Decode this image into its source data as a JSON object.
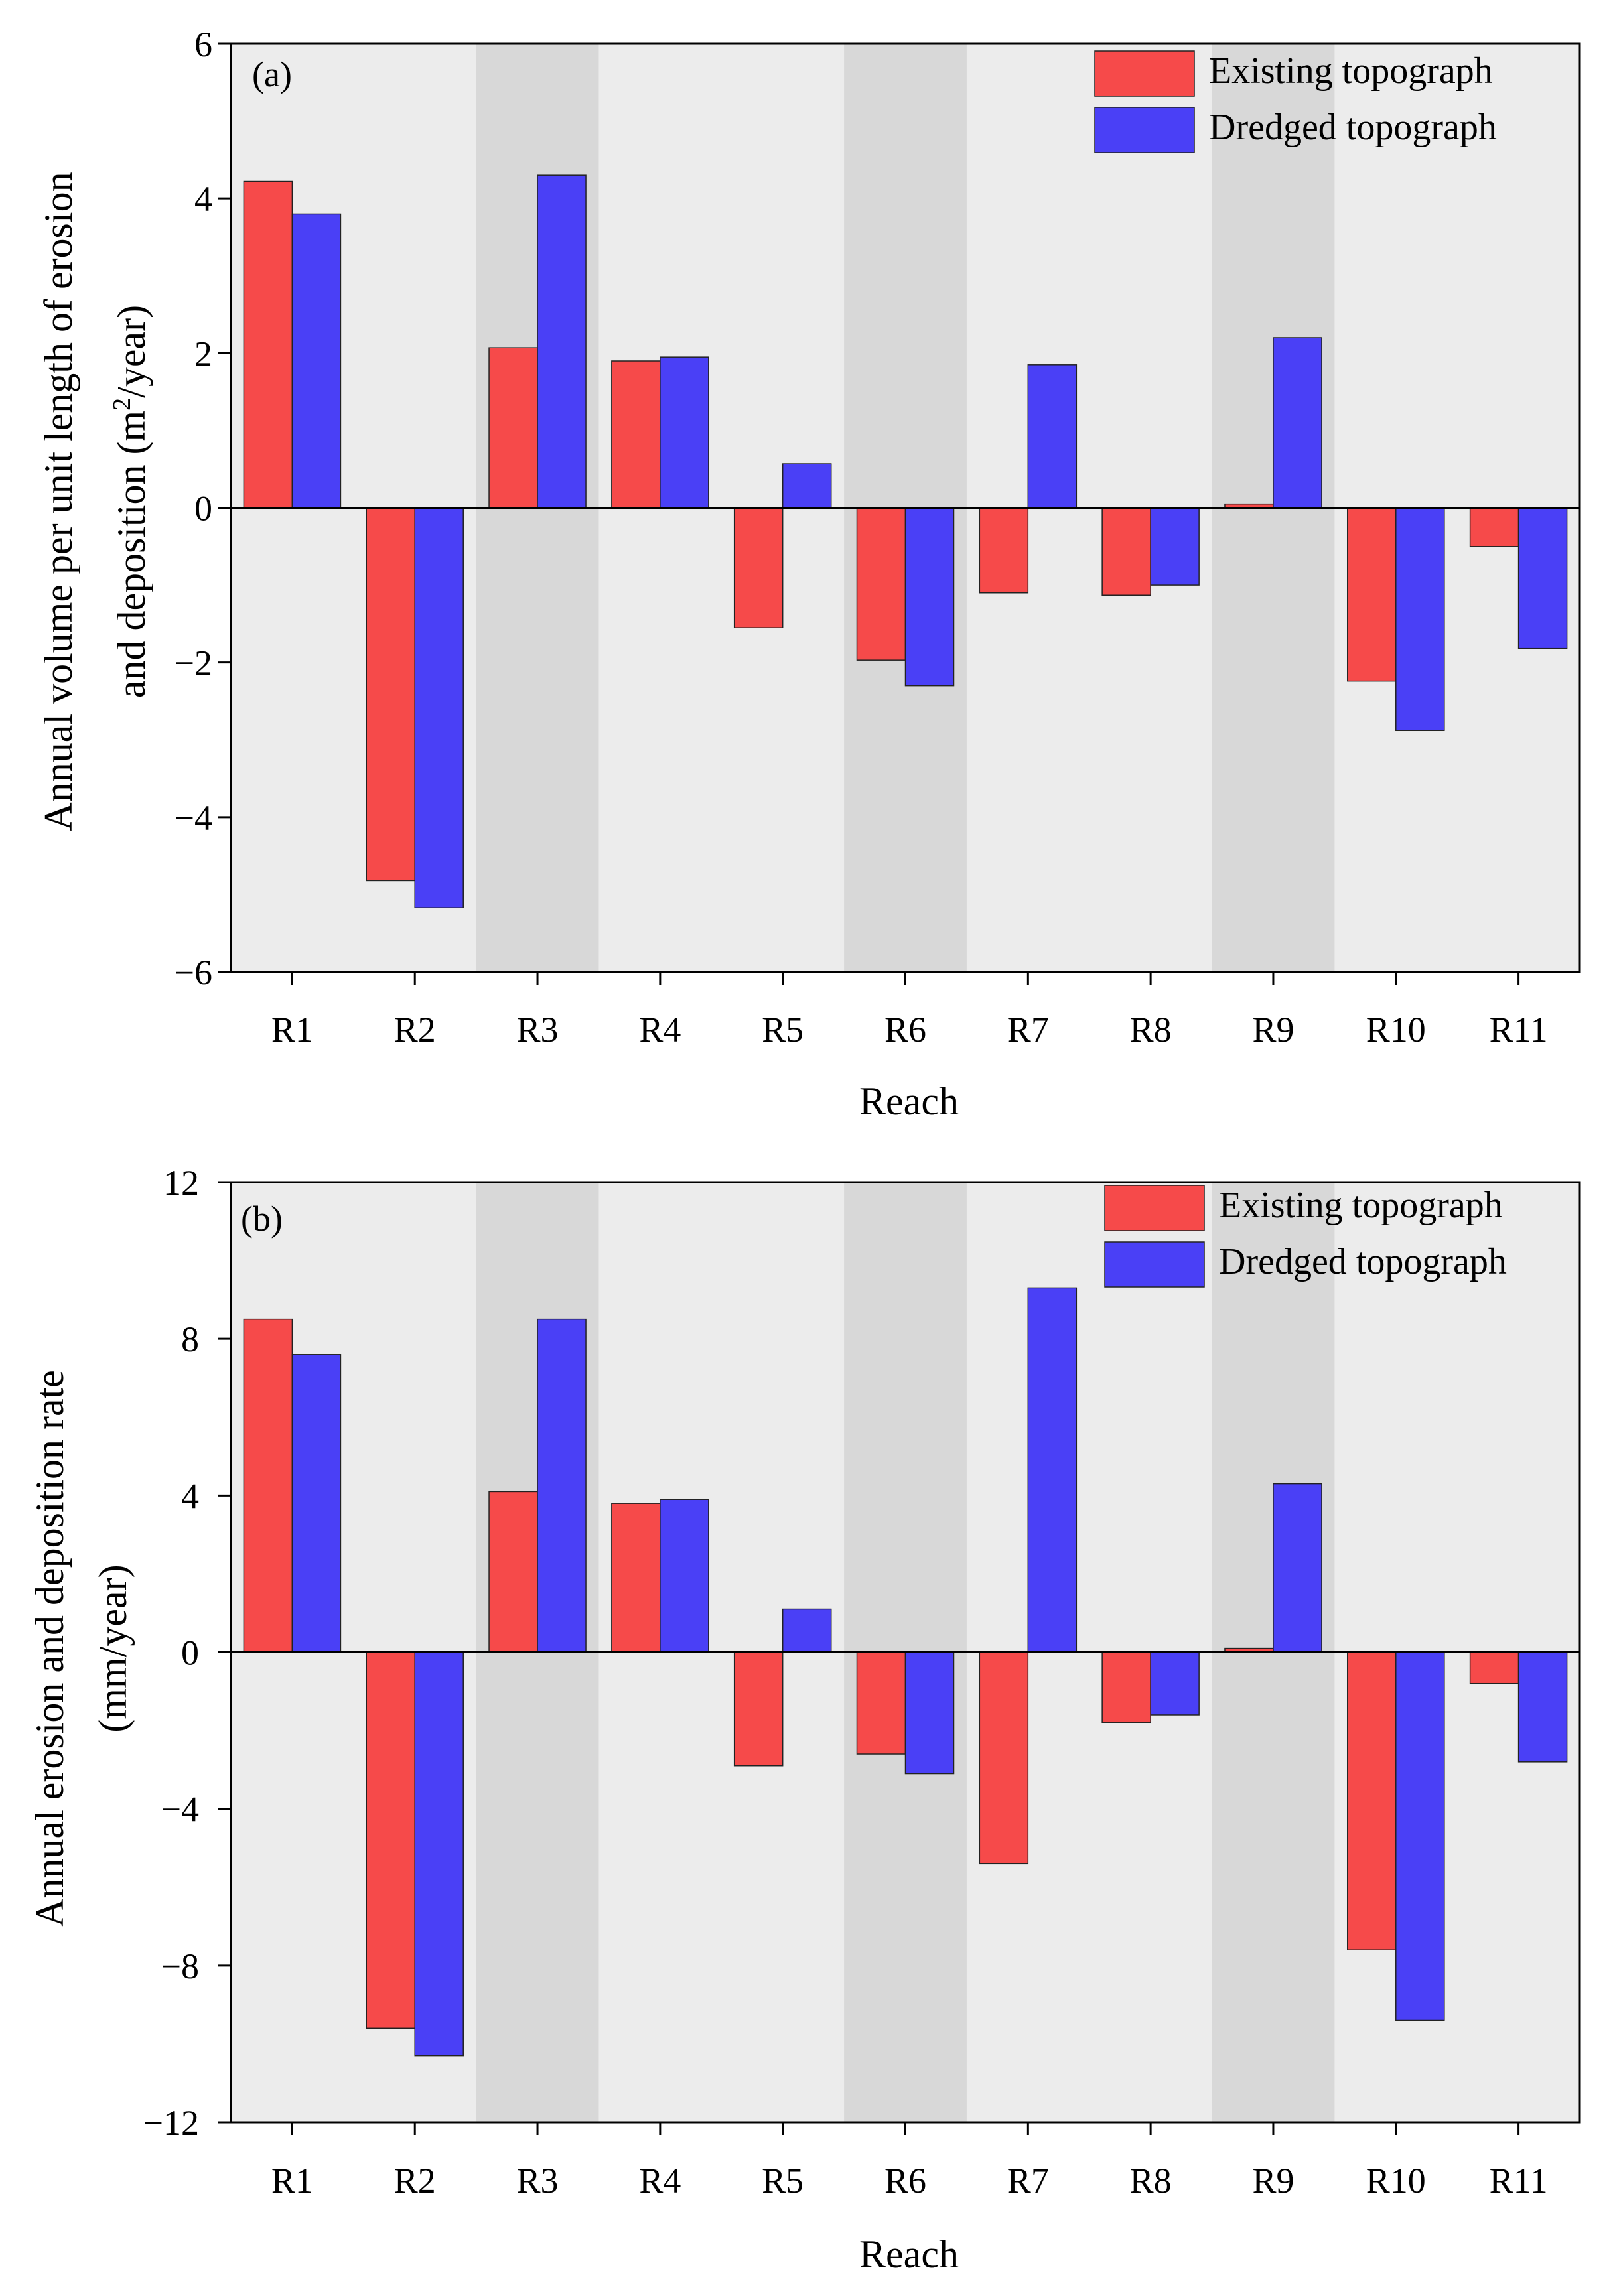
{
  "chart_data": [
    {
      "type": "bar",
      "panel_label": "(a)",
      "title": "",
      "xlabel": "Reach",
      "ylabel_line1": "Annual volume per unit length of erosion",
      "ylabel_line2_prefix": "and deposition (m",
      "ylabel_line2_sup": "2",
      "ylabel_line2_suffix": "/year)",
      "ylim": [
        -6,
        6
      ],
      "yticks": [
        6,
        4,
        2,
        0,
        -2,
        -4,
        -6
      ],
      "ytick_labels": [
        "6",
        "4",
        "2",
        "0",
        "−2",
        "−4",
        "−6"
      ],
      "categories": [
        "R1",
        "R2",
        "R3",
        "R4",
        "R5",
        "R6",
        "R7",
        "R8",
        "R9",
        "R10",
        "R11"
      ],
      "shaded_categories": [
        "R3",
        "R6",
        "R9"
      ],
      "legend_position": "top-right",
      "series": [
        {
          "name": "Existing topograph",
          "values": [
            4.22,
            -4.82,
            2.07,
            1.9,
            -1.55,
            -1.97,
            -1.1,
            -1.13,
            0.05,
            -2.24,
            -0.5
          ]
        },
        {
          "name": "Dredged topograph",
          "values": [
            3.8,
            -5.17,
            4.3,
            1.95,
            0.57,
            -2.3,
            1.85,
            -1.0,
            2.2,
            -2.88,
            -1.82
          ]
        }
      ]
    },
    {
      "type": "bar",
      "panel_label": "(b)",
      "title": "",
      "xlabel": "Reach",
      "ylabel_line1": "Annual  erosion and deposition rate",
      "ylabel_line2": "(mm/year)",
      "ylim": [
        -12,
        12
      ],
      "yticks": [
        12,
        8,
        4,
        0,
        -4,
        -8,
        -12
      ],
      "ytick_labels": [
        "12",
        "8",
        "4",
        "0",
        "−4",
        "−8",
        "−12"
      ],
      "categories": [
        "R1",
        "R2",
        "R3",
        "R4",
        "R5",
        "R6",
        "R7",
        "R8",
        "R9",
        "R10",
        "R11"
      ],
      "shaded_categories": [
        "R3",
        "R6",
        "R9"
      ],
      "legend_position": "top-right",
      "series": [
        {
          "name": "Existing topograph",
          "values": [
            8.5,
            -9.6,
            4.1,
            3.8,
            -2.9,
            -2.6,
            -5.4,
            -1.8,
            0.1,
            -7.6,
            -0.8
          ]
        },
        {
          "name": "Dredged topograph",
          "values": [
            7.6,
            -10.3,
            8.5,
            3.9,
            1.1,
            -3.1,
            9.3,
            -1.6,
            4.3,
            -9.4,
            -2.8
          ]
        }
      ]
    }
  ],
  "colors": {
    "existing": "#f64a4a",
    "dredged": "#4a40f6",
    "panel_background": "#ececec",
    "panel_shade": "#d8d8d8"
  }
}
